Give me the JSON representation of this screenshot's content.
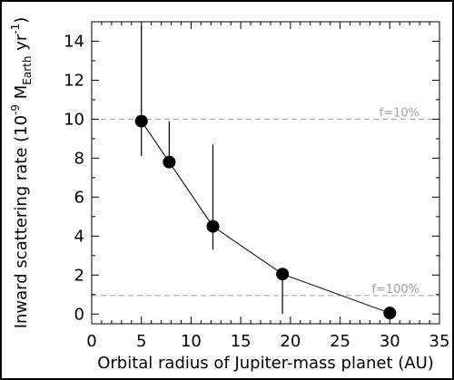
{
  "chart_data": {
    "type": "scatter",
    "title": "",
    "xlabel": "Orbital radius of Jupiter-mass planet (AU)",
    "ylabel_parts": {
      "prefix": "Inward scattering rate (10",
      "exp1": "-9",
      "mid": " M",
      "sub": "Earth",
      "mid2": " yr",
      "exp2": "-1",
      "suffix": ")"
    },
    "xlim": [
      0,
      35
    ],
    "ylim": [
      -0.5,
      15
    ],
    "xticks": [
      0,
      5,
      10,
      15,
      20,
      25,
      30,
      35
    ],
    "yticks": [
      0,
      2,
      4,
      6,
      8,
      10,
      12,
      14
    ],
    "grid": false,
    "series": [
      {
        "points": [
          {
            "x": 5.0,
            "y": 9.9,
            "err_low": 8.1,
            "err_high": 14.8
          },
          {
            "x": 7.8,
            "y": 7.8,
            "err_low": 7.8,
            "err_high": 9.9
          },
          {
            "x": 12.2,
            "y": 4.5,
            "err_low": 3.3,
            "err_high": 8.7
          },
          {
            "x": 19.2,
            "y": 2.05,
            "err_low": 0.0,
            "err_high": 2.05
          },
          {
            "x": 30.0,
            "y": 0.05,
            "err_low": 0.05,
            "err_high": 0.05
          }
        ]
      }
    ],
    "reference_lines": [
      {
        "y": 10.0,
        "label": "f=10%",
        "color": "#a0a0a0",
        "style": "dashed"
      },
      {
        "y": 0.95,
        "label": "f=100%",
        "color": "#a0a0a0",
        "style": "dashed"
      }
    ]
  }
}
